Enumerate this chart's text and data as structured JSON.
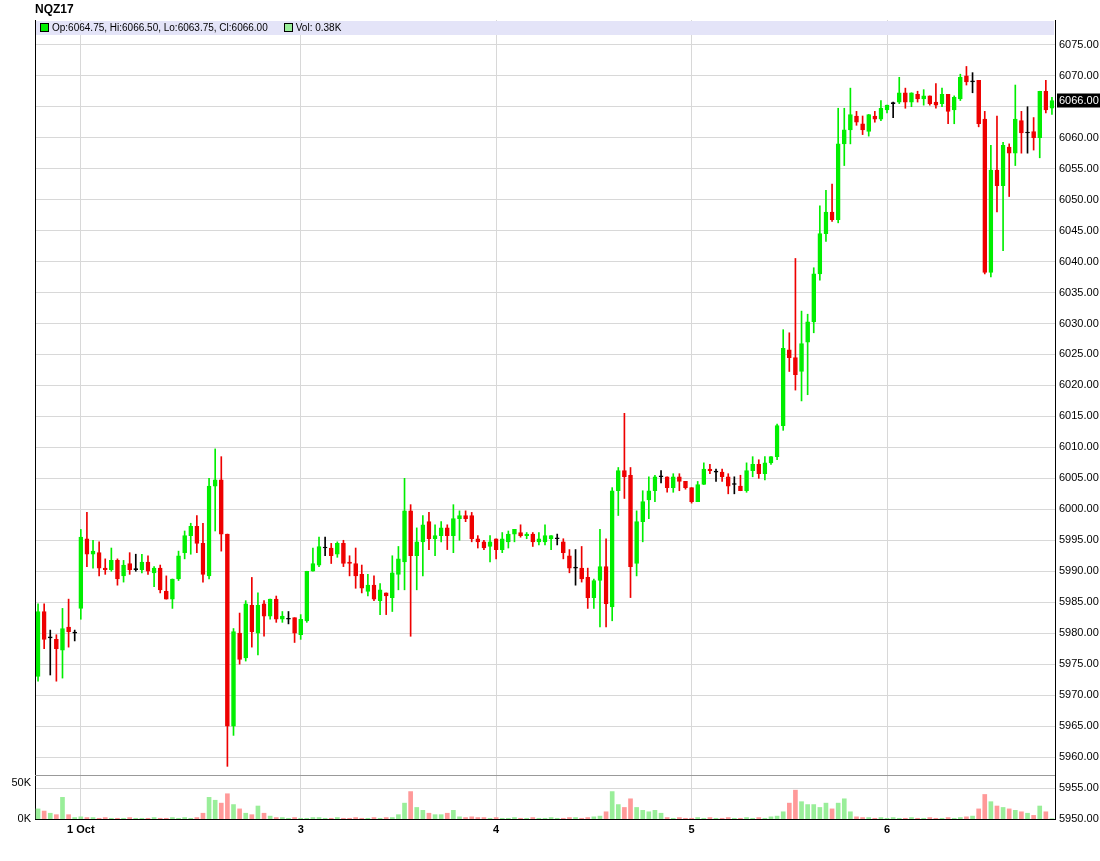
{
  "chart_data": [
    {
      "type": "candlestick",
      "title": "NQZ17",
      "categories": [
        null,
        null,
        null,
        null,
        null,
        null,
        null,
        "1 Oct",
        null,
        null,
        null,
        null,
        null,
        null,
        null,
        null,
        null,
        null,
        null,
        null,
        null,
        null,
        null,
        null,
        null,
        null,
        null,
        null,
        null,
        null,
        null,
        null,
        null,
        null,
        null,
        null,
        null,
        null,
        null,
        null,
        null,
        null,
        null,
        "3",
        null,
        null,
        null,
        null,
        null,
        null,
        null,
        null,
        null,
        null,
        null,
        null,
        null,
        null,
        null,
        null,
        null,
        null,
        null,
        null,
        null,
        null,
        null,
        null,
        null,
        null,
        null,
        null,
        null,
        null,
        null,
        "4",
        null,
        null,
        null,
        null,
        null,
        null,
        null,
        null,
        null,
        null,
        null,
        null,
        null,
        null,
        null,
        null,
        null,
        null,
        null,
        null,
        null,
        null,
        null,
        null,
        null,
        null,
        null,
        null,
        null,
        null,
        null,
        "5",
        null,
        null,
        null,
        null,
        null,
        null,
        null,
        null,
        null,
        null,
        null,
        null,
        null,
        null,
        null,
        null,
        null,
        null,
        null,
        null,
        null,
        null,
        null,
        null,
        null,
        null,
        null,
        null,
        null,
        null,
        null,
        "6",
        null,
        null,
        null,
        null,
        null,
        null,
        null,
        null,
        null,
        null,
        null,
        null,
        null,
        null,
        null,
        null,
        null,
        null,
        null,
        null,
        null,
        null,
        null,
        null,
        null,
        null,
        null
      ],
      "ohlc": [
        [
          5973,
          5984.75,
          5972.25,
          5983.5
        ],
        [
          5983.5,
          5984.75,
          5977.5,
          5979
        ],
        [
          5979.25,
          5980.5,
          5973.25,
          5979.25
        ],
        [
          5979,
          5979.75,
          5972.25,
          5977.5
        ],
        [
          5977.25,
          5984,
          5972.75,
          5980.75
        ],
        [
          5981,
          5985.5,
          5977.75,
          5980.25
        ],
        [
          5980,
          5980.5,
          5978.75,
          5980
        ],
        [
          5984,
          5996.75,
          5982.25,
          5995.5
        ],
        [
          5995.25,
          5999.5,
          5990.75,
          5992.75
        ],
        [
          5992.75,
          5995,
          5990.5,
          5993.25
        ],
        [
          5993,
          5994.75,
          5989.25,
          5990.5
        ],
        [
          5990.5,
          5992,
          5989.5,
          5990.25
        ],
        [
          5990.25,
          5993.75,
          5990,
          5991.75
        ],
        [
          5991.75,
          5992,
          5987.75,
          5988.75
        ],
        [
          5989.25,
          5991.75,
          5988.25,
          5991
        ],
        [
          5991.25,
          5993,
          5989.5,
          5990.25
        ],
        [
          5990.25,
          5992.75,
          5990,
          5990.25
        ],
        [
          5990.25,
          5992.75,
          5989.75,
          5991.5
        ],
        [
          5991.5,
          5992.5,
          5989.5,
          5990
        ],
        [
          5989.75,
          5990.75,
          5987.5,
          5990.5
        ],
        [
          5990.5,
          5991,
          5986.5,
          5987
        ],
        [
          5986.75,
          5989.25,
          5985.5,
          5985.5
        ],
        [
          5985.5,
          5988.75,
          5984,
          5988.75
        ],
        [
          5988.75,
          5993.25,
          5988.5,
          5992.5
        ],
        [
          5993,
          5996.5,
          5992,
          5995.75
        ],
        [
          5995.75,
          5997.75,
          5992.75,
          5997.25
        ],
        [
          5997.25,
          5999,
          5993,
          5994.5
        ],
        [
          5994.5,
          5997.75,
          5988.25,
          5989.5
        ],
        [
          5989.25,
          6005,
          5988.75,
          6003.75
        ],
        [
          6003.75,
          6009.75,
          5996.5,
          6004.75
        ],
        [
          6004.75,
          6008.5,
          5993.25,
          5996
        ],
        [
          5996,
          5996,
          5958.5,
          5965
        ],
        [
          5965,
          5980.75,
          5963.5,
          5980.25
        ],
        [
          5980,
          5983.25,
          5975,
          5975.75
        ],
        [
          5976,
          5985.25,
          5975.5,
          5984.75
        ],
        [
          5984.5,
          5989,
          5977.75,
          5980.25
        ],
        [
          5980,
          5986.5,
          5976.5,
          5984.5
        ],
        [
          5984.75,
          5985.25,
          5979.5,
          5982.75
        ],
        [
          5982.75,
          5985.5,
          5982.25,
          5985.5
        ],
        [
          5985.5,
          5986,
          5981.75,
          5982.25
        ],
        [
          5982.25,
          5983.5,
          5981.75,
          5982.75
        ],
        [
          5982.25,
          5983.5,
          5981.5,
          5982.25
        ],
        [
          5982.5,
          5982.5,
          5978.5,
          5980
        ],
        [
          5979.75,
          5983,
          5979,
          5982.25
        ],
        [
          5982,
          5990,
          5981.75,
          5990
        ],
        [
          5990,
          5993.75,
          5990,
          5991.25
        ],
        [
          5991,
          5995.5,
          5990.75,
          5994
        ],
        [
          5993.75,
          5995.5,
          5992.5,
          5993.75
        ],
        [
          5993.75,
          5994.5,
          5991.25,
          5992.5
        ],
        [
          5992.75,
          5994.75,
          5992.25,
          5994.5
        ],
        [
          5994.5,
          5995,
          5990.75,
          5991.25
        ],
        [
          5991.5,
          5992.5,
          5989.25,
          5991.25
        ],
        [
          5991.25,
          5993.75,
          5987.25,
          5989.25
        ],
        [
          5989.5,
          5991,
          5986.5,
          5987.25
        ],
        [
          5986.75,
          5989.5,
          5986,
          5987.75
        ],
        [
          5987.75,
          5989.25,
          5985.25,
          5985.5
        ],
        [
          5985.25,
          5988,
          5983,
          5987
        ],
        [
          5986.5,
          5986.5,
          5983,
          5986
        ],
        [
          5985.75,
          5992.5,
          5983.5,
          5989.75
        ],
        [
          5989.5,
          5994,
          5987,
          5992
        ],
        [
          5991.5,
          6005,
          5987,
          5999.75
        ],
        [
          5999.75,
          6000.75,
          5979.5,
          5992.5
        ],
        [
          5992.5,
          5997,
          5987,
          5994.75
        ],
        [
          5994.75,
          5999,
          5989.25,
          5997.5
        ],
        [
          5998,
          5999.5,
          5993.5,
          5995.25
        ],
        [
          5995.25,
          5997.5,
          5992.5,
          5995.75
        ],
        [
          5995.75,
          5998,
          5994.75,
          5997
        ],
        [
          5997,
          5997.5,
          5993.5,
          5995.75
        ],
        [
          5995.75,
          6000.75,
          5993,
          5998.5
        ],
        [
          5998.5,
          5999.75,
          5995,
          5999
        ],
        [
          5999,
          5999.75,
          5998,
          5998.5
        ],
        [
          5999,
          5999.5,
          5994.75,
          5995.25
        ],
        [
          5995.25,
          5995.75,
          5993.75,
          5994.75
        ],
        [
          5994.75,
          5995,
          5993.5,
          5993.75
        ],
        [
          5994,
          5995.75,
          5991.5,
          5994.75
        ],
        [
          5995.25,
          5995.25,
          5992,
          5993.5
        ],
        [
          5993.5,
          5996.25,
          5993,
          5995.25
        ],
        [
          5994.75,
          5996.5,
          5993.75,
          5996
        ],
        [
          5996,
          5996.75,
          5994.75,
          5996.75
        ],
        [
          5996.25,
          5997.5,
          5995.5,
          5995.75
        ],
        [
          5995.75,
          5996.25,
          5995.25,
          5996
        ],
        [
          5996,
          5996.25,
          5994,
          5994.75
        ],
        [
          5994.75,
          5996.25,
          5994.25,
          5995.25
        ],
        [
          5994.75,
          5997.5,
          5994.25,
          5995.75
        ],
        [
          5995.25,
          5995.75,
          5993.5,
          5995.75
        ],
        [
          5995.25,
          5996,
          5994.25,
          5995.25
        ],
        [
          5994.75,
          5995.25,
          5992,
          5993
        ],
        [
          5992.5,
          5993.5,
          5989.75,
          5990.5
        ],
        [
          5990.5,
          5993.5,
          5987.75,
          5990.5
        ],
        [
          5990.5,
          5994,
          5988.25,
          5988.75
        ],
        [
          5989,
          5990.5,
          5984,
          5985.75
        ],
        [
          5985.75,
          5988.75,
          5984,
          5988.5
        ],
        [
          5988.5,
          5996.75,
          5981,
          5990.75
        ],
        [
          5990.75,
          5995.25,
          5981,
          5984.75
        ],
        [
          5984.25,
          6003.5,
          5982,
          6003
        ],
        [
          6003,
          6006.75,
          5999,
          6006.25
        ],
        [
          6006.25,
          6015.5,
          6001.75,
          6005.25
        ],
        [
          6005.5,
          6006.75,
          5985.75,
          5990.75
        ],
        [
          5991.25,
          5999.75,
          5989.25,
          5998
        ],
        [
          5998,
          6003,
          5994.75,
          6001.25
        ],
        [
          6001.5,
          6005.25,
          5998.5,
          6003
        ],
        [
          6003,
          6005.5,
          6001.25,
          6005.25
        ],
        [
          6005.25,
          6006.25,
          6004.25,
          6005.25
        ],
        [
          6005.25,
          6005.25,
          6002.75,
          6003.5
        ],
        [
          6003.5,
          6005.75,
          6002.75,
          6005.25
        ],
        [
          6005.25,
          6005.75,
          6003,
          6004.5
        ],
        [
          6004.5,
          6004.5,
          6003.25,
          6003.5
        ],
        [
          6003.5,
          6003.5,
          6001,
          6001.25
        ],
        [
          6001.25,
          6004.5,
          6001.25,
          6004
        ],
        [
          6004,
          6007.5,
          6004,
          6006.5
        ],
        [
          6006.5,
          6007.25,
          6005.75,
          6006.25
        ],
        [
          6006,
          6006.5,
          6004.5,
          6006
        ],
        [
          6006,
          6006.5,
          6004.5,
          6005.25
        ],
        [
          6005.25,
          6005.75,
          6002.5,
          6003.75
        ],
        [
          6004,
          6005.25,
          6002.5,
          6004
        ],
        [
          6003.75,
          6005.5,
          6003,
          6003
        ],
        [
          6003,
          6007.5,
          6002.75,
          6006.25
        ],
        [
          6006.25,
          6008.5,
          6005.25,
          6007.25
        ],
        [
          6007.25,
          6008,
          6005,
          6005.75
        ],
        [
          6005.75,
          6008.5,
          6004.75,
          6007.5
        ],
        [
          6007.5,
          6008.5,
          6007.25,
          6008.5
        ],
        [
          6008.5,
          6013.75,
          6008,
          6013.5
        ],
        [
          6013.5,
          6029,
          6012.75,
          6026
        ],
        [
          6025.75,
          6028.5,
          6022.25,
          6024.5
        ],
        [
          6024.5,
          6040.5,
          6019.25,
          6021.75
        ],
        [
          6022.25,
          6032,
          6017.5,
          6026.75
        ],
        [
          6027,
          6031.5,
          6018.5,
          6030.25
        ],
        [
          6030.25,
          6039,
          6028.5,
          6038
        ],
        [
          6038,
          6049,
          6037,
          6044.5
        ],
        [
          6044.5,
          6051.5,
          6043.25,
          6048
        ],
        [
          6048,
          6052.5,
          6046.5,
          6046.75
        ],
        [
          6046.75,
          6064.75,
          6046.25,
          6059
        ],
        [
          6059,
          6064.75,
          6055.5,
          6061.25
        ],
        [
          6061.25,
          6068,
          6059,
          6063.75
        ],
        [
          6063.5,
          6064.25,
          6062,
          6062.5
        ],
        [
          6062.25,
          6063.5,
          6060.5,
          6061.25
        ],
        [
          6061,
          6063.75,
          6060.25,
          6063.75
        ],
        [
          6063.5,
          6064.25,
          6062.5,
          6063
        ],
        [
          6063,
          6066,
          6062.75,
          6064.75
        ],
        [
          6064.5,
          6065.25,
          6064,
          6065.25
        ],
        [
          6065.5,
          6065.75,
          6063.25,
          6065.5
        ],
        [
          6065.75,
          6069.75,
          6065.5,
          6067.25
        ],
        [
          6067.25,
          6068,
          6064.75,
          6065.75
        ],
        [
          6065.75,
          6067.25,
          6065,
          6067.25
        ],
        [
          6067,
          6067.5,
          6065.75,
          6066.25
        ],
        [
          6066.25,
          6067.75,
          6065.25,
          6066.75
        ],
        [
          6066.75,
          6066.75,
          6065.25,
          6065.5
        ],
        [
          6065.75,
          6068.75,
          6064.75,
          6065.25
        ],
        [
          6065.5,
          6068,
          6065,
          6067
        ],
        [
          6067,
          6067,
          6062.25,
          6064.25
        ],
        [
          6064.5,
          6066.75,
          6062.25,
          6066.5
        ],
        [
          6066.25,
          6070.25,
          6066,
          6069.75
        ],
        [
          6070,
          6071.5,
          6068.5,
          6069
        ],
        [
          6069,
          6070.5,
          6067.25,
          6069
        ],
        [
          6069.25,
          6069.25,
          6061.75,
          6062.25
        ],
        [
          6063,
          6064.25,
          6038,
          6038.25
        ],
        [
          6038.25,
          6058.75,
          6037.5,
          6054.75
        ],
        [
          6054.75,
          6063.5,
          6048,
          6052.25
        ],
        [
          6052.25,
          6059.25,
          6041.75,
          6058.75
        ],
        [
          6058.5,
          6059,
          6050.5,
          6057.5
        ],
        [
          6057.5,
          6068.5,
          6055.5,
          6063
        ],
        [
          6062.75,
          6064.25,
          6057.5,
          6060.75
        ],
        [
          6060.75,
          6065,
          6057.5,
          6060.75
        ],
        [
          6061,
          6063.25,
          6058,
          6060
        ],
        [
          6060,
          6067.5,
          6056.75,
          6067.5
        ],
        [
          6067.5,
          6069.25,
          6064,
          6064.5
        ],
        [
          6064.75,
          6066.5,
          6063.75,
          6066
        ]
      ],
      "colors": [
        "#00ee00",
        "#ee0000",
        "#000000",
        "#ee0000",
        "#00ee00",
        "#ee0000",
        "#000000",
        "#00ee00",
        "#ee0000",
        "#00ee00",
        "#ee0000",
        "#ee0000",
        "#00ee00",
        "#ee0000",
        "#00ee00",
        "#ee0000",
        "#000000",
        "#00ee00",
        "#ee0000",
        "#00ee00",
        "#ee0000",
        "#ee0000",
        "#00ee00",
        "#00ee00",
        "#00ee00",
        "#00ee00",
        "#ee0000",
        "#ee0000",
        "#00ee00",
        "#00ee00",
        "#ee0000",
        "#ee0000",
        "#00ee00",
        "#ee0000",
        "#00ee00",
        "#ee0000",
        "#00ee00",
        "#ee0000",
        "#00ee00",
        "#ee0000",
        "#00ee00",
        "#000000",
        "#ee0000",
        "#00ee00",
        "#00ee00",
        "#00ee00",
        "#00ee00",
        "#000000",
        "#ee0000",
        "#00ee00",
        "#ee0000",
        "#ee0000",
        "#ee0000",
        "#ee0000",
        "#00ee00",
        "#ee0000",
        "#00ee00",
        "#ee0000",
        "#00ee00",
        "#00ee00",
        "#00ee00",
        "#ee0000",
        "#00ee00",
        "#00ee00",
        "#ee0000",
        "#00ee00",
        "#00ee00",
        "#ee0000",
        "#00ee00",
        "#00ee00",
        "#ee0000",
        "#ee0000",
        "#ee0000",
        "#ee0000",
        "#00ee00",
        "#ee0000",
        "#00ee00",
        "#00ee00",
        "#00ee00",
        "#ee0000",
        "#00ee00",
        "#ee0000",
        "#00ee00",
        "#00ee00",
        "#00ee00",
        "#000000",
        "#ee0000",
        "#ee0000",
        "#000000",
        "#ee0000",
        "#ee0000",
        "#00ee00",
        "#00ee00",
        "#ee0000",
        "#00ee00",
        "#00ee00",
        "#ee0000",
        "#ee0000",
        "#00ee00",
        "#00ee00",
        "#00ee00",
        "#00ee00",
        "#000000",
        "#ee0000",
        "#00ee00",
        "#ee0000",
        "#ee0000",
        "#ee0000",
        "#00ee00",
        "#00ee00",
        "#ee0000",
        "#000000",
        "#ee0000",
        "#ee0000",
        "#000000",
        "#ee0000",
        "#00ee00",
        "#00ee00",
        "#ee0000",
        "#00ee00",
        "#00ee00",
        "#00ee00",
        "#00ee00",
        "#ee0000",
        "#ee0000",
        "#00ee00",
        "#00ee00",
        "#00ee00",
        "#00ee00",
        "#00ee00",
        "#ee0000",
        "#00ee00",
        "#00ee00",
        "#00ee00",
        "#ee0000",
        "#ee0000",
        "#00ee00",
        "#ee0000",
        "#00ee00",
        "#00ee00",
        "#000000",
        "#00ee00",
        "#ee0000",
        "#00ee00",
        "#ee0000",
        "#00ee00",
        "#ee0000",
        "#ee0000",
        "#00ee00",
        "#ee0000",
        "#00ee00",
        "#00ee00",
        "#ee0000",
        "#000000",
        "#ee0000",
        "#ee0000",
        "#00ee00",
        "#ee0000",
        "#00ee00",
        "#ee0000",
        "#00ee00",
        "#ee0000",
        "#000000",
        "#ee0000",
        "#00ee00",
        "#ee0000",
        "#00ee00"
      ],
      "ylim": [
        5950,
        6079
      ],
      "yticks": [
        {
          "value": 5950,
          "label": "5950.00"
        },
        {
          "value": 5955,
          "label": "5955.00"
        },
        {
          "value": 5960,
          "label": "5960.00"
        },
        {
          "value": 5965,
          "label": "5965.00"
        },
        {
          "value": 5970,
          "label": "5970.00"
        },
        {
          "value": 5975,
          "label": "5975.00"
        },
        {
          "value": 5980,
          "label": "5980.00"
        },
        {
          "value": 5985,
          "label": "5985.00"
        },
        {
          "value": 5990,
          "label": "5990.00"
        },
        {
          "value": 5995,
          "label": "5995.00"
        },
        {
          "value": 6000,
          "label": "6000.00"
        },
        {
          "value": 6005,
          "label": "6005.00"
        },
        {
          "value": 6010,
          "label": "6010.00"
        },
        {
          "value": 6015,
          "label": "6015.00"
        },
        {
          "value": 6020,
          "label": "6020.00"
        },
        {
          "value": 6025,
          "label": "6025.00"
        },
        {
          "value": 6030,
          "label": "6030.00"
        },
        {
          "value": 6035,
          "label": "6035.00"
        },
        {
          "value": 6040,
          "label": "6040.00"
        },
        {
          "value": 6045,
          "label": "6045.00"
        },
        {
          "value": 6050,
          "label": "6050.00"
        },
        {
          "value": 6055,
          "label": "6055.00"
        },
        {
          "value": 6060,
          "label": "6060.00"
        },
        {
          "value": 6065,
          "label": null
        },
        {
          "value": 6070,
          "label": "6070.00"
        },
        {
          "value": 6075,
          "label": "6075.00"
        }
      ],
      "annotations": [
        "Op:6064.75, Hi:6066.50, Lo:6063.75, Cl:6066.00",
        "Vol: 0.38K",
        {
          "text": "6066.00",
          "y": 6066
        }
      ],
      "grid": true
    },
    {
      "type": "bar",
      "tick_labels": "y",
      "categories": [
        null,
        null,
        null,
        null,
        null,
        null,
        null,
        null,
        null,
        null,
        null,
        null,
        null,
        null,
        null,
        null,
        null,
        null,
        null,
        null,
        null,
        null,
        null,
        null,
        null,
        null,
        null,
        null,
        null,
        null,
        null,
        null,
        null,
        null,
        null,
        null,
        null,
        null,
        null,
        null,
        null,
        null,
        null,
        null,
        null,
        null,
        null,
        null,
        null,
        null,
        null,
        null,
        null,
        null,
        null,
        null,
        null,
        null,
        null,
        null,
        null,
        null,
        null,
        null,
        null,
        null,
        null,
        null,
        null,
        null,
        null,
        null,
        null,
        null,
        null,
        null,
        null,
        null,
        null,
        null,
        null,
        null,
        null,
        null,
        null,
        null,
        null,
        null,
        null,
        null,
        null,
        null,
        null,
        null,
        null,
        null,
        null,
        null,
        null,
        null,
        null,
        null,
        null,
        null,
        null,
        null,
        null,
        null,
        null,
        null,
        null,
        null,
        null,
        null,
        null,
        null,
        null,
        null,
        null,
        null,
        null,
        null,
        null,
        null,
        null,
        null,
        null,
        null,
        null,
        null,
        null,
        null,
        null,
        null,
        null,
        null,
        null,
        null,
        null,
        null,
        null,
        null,
        null,
        null,
        null,
        null,
        null,
        null,
        null,
        null,
        null,
        null,
        null,
        null,
        null,
        null,
        null,
        null,
        null,
        null,
        null,
        null,
        null,
        null,
        null,
        null,
        null
      ],
      "values": [
        14,
        11,
        8,
        6,
        30,
        6,
        2,
        3,
        2,
        2,
        1,
        2,
        1,
        1,
        1,
        2,
        1,
        1,
        1,
        2,
        1,
        1,
        2,
        1,
        2,
        1,
        2,
        8,
        30,
        26,
        22,
        35,
        20,
        14,
        8,
        6,
        18,
        8,
        4,
        2,
        2,
        1,
        2,
        1,
        1,
        2,
        2,
        1,
        1,
        2,
        1,
        1,
        2,
        1,
        1,
        2,
        1,
        2,
        2,
        6,
        22,
        38,
        16,
        12,
        8,
        6,
        6,
        8,
        12,
        3,
        2,
        3,
        2,
        2,
        1,
        2,
        1,
        1,
        2,
        1,
        1,
        2,
        1,
        1,
        2,
        1,
        1,
        2,
        2,
        1,
        2,
        3,
        4,
        10,
        38,
        20,
        16,
        28,
        16,
        12,
        10,
        12,
        8,
        2,
        1,
        2,
        1,
        1,
        2,
        1,
        2,
        1,
        1,
        2,
        1,
        1,
        2,
        1,
        2,
        1,
        3,
        4,
        10,
        22,
        40,
        24,
        20,
        20,
        16,
        22,
        14,
        22,
        28,
        10,
        3,
        2,
        2,
        1,
        2,
        1,
        2,
        1,
        1,
        2,
        1,
        1,
        2,
        1,
        1,
        2,
        1,
        2,
        3,
        4,
        14,
        34,
        24,
        18,
        16,
        14,
        12,
        10,
        8,
        5,
        18,
        10,
        0.38
      ],
      "colors": [
        "#99ee99",
        "#ff9999",
        "#99ee99",
        "#ff9999",
        "#99ee99",
        "#ff9999",
        "#99ee99",
        "#99ee99",
        "#ff9999",
        "#99ee99",
        "#ff9999",
        "#ff9999",
        "#99ee99",
        "#ff9999",
        "#99ee99",
        "#ff9999",
        "#99ee99",
        "#99ee99",
        "#ff9999",
        "#99ee99",
        "#ff9999",
        "#ff9999",
        "#99ee99",
        "#99ee99",
        "#99ee99",
        "#99ee99",
        "#ff9999",
        "#ff9999",
        "#99ee99",
        "#99ee99",
        "#ff9999",
        "#ff9999",
        "#99ee99",
        "#ff9999",
        "#99ee99",
        "#ff9999",
        "#99ee99",
        "#ff9999",
        "#99ee99",
        "#ff9999",
        "#99ee99",
        "#99ee99",
        "#ff9999",
        "#99ee99",
        "#99ee99",
        "#99ee99",
        "#99ee99",
        "#99ee99",
        "#ff9999",
        "#99ee99",
        "#ff9999",
        "#ff9999",
        "#ff9999",
        "#ff9999",
        "#99ee99",
        "#ff9999",
        "#99ee99",
        "#ff9999",
        "#99ee99",
        "#99ee99",
        "#99ee99",
        "#ff9999",
        "#99ee99",
        "#99ee99",
        "#ff9999",
        "#99ee99",
        "#99ee99",
        "#ff9999",
        "#99ee99",
        "#99ee99",
        "#ff9999",
        "#ff9999",
        "#ff9999",
        "#ff9999",
        "#99ee99",
        "#ff9999",
        "#99ee99",
        "#99ee99",
        "#99ee99",
        "#ff9999",
        "#99ee99",
        "#ff9999",
        "#99ee99",
        "#99ee99",
        "#99ee99",
        "#99ee99",
        "#ff9999",
        "#ff9999",
        "#99ee99",
        "#ff9999",
        "#ff9999",
        "#99ee99",
        "#99ee99",
        "#ff9999",
        "#99ee99",
        "#99ee99",
        "#ff9999",
        "#ff9999",
        "#99ee99",
        "#99ee99",
        "#99ee99",
        "#99ee99",
        "#99ee99",
        "#ff9999",
        "#99ee99",
        "#ff9999",
        "#ff9999",
        "#ff9999",
        "#99ee99",
        "#99ee99",
        "#ff9999",
        "#99ee99",
        "#ff9999",
        "#ff9999",
        "#99ee99",
        "#ff9999",
        "#99ee99",
        "#99ee99",
        "#ff9999",
        "#99ee99",
        "#99ee99",
        "#99ee99",
        "#99ee99",
        "#ff9999",
        "#ff9999",
        "#99ee99",
        "#99ee99",
        "#99ee99",
        "#99ee99",
        "#99ee99",
        "#ff9999",
        "#99ee99",
        "#99ee99",
        "#99ee99",
        "#ff9999",
        "#ff9999",
        "#99ee99",
        "#ff9999",
        "#99ee99",
        "#99ee99",
        "#99ee99",
        "#99ee99",
        "#ff9999",
        "#99ee99",
        "#ff9999",
        "#99ee99",
        "#ff9999",
        "#ff9999",
        "#99ee99",
        "#ff9999",
        "#99ee99",
        "#99ee99",
        "#ff9999",
        "#99ee99",
        "#ff9999",
        "#ff9999",
        "#99ee99",
        "#ff9999",
        "#99ee99",
        "#ff9999",
        "#99ee99",
        "#ff9999",
        "#99ee99",
        "#ff9999",
        "#99ee99",
        "#ff9999",
        "#99ee99"
      ],
      "ylim": [
        0,
        61
      ],
      "yticks": [
        {
          "value": 0,
          "label": "0K"
        },
        {
          "value": 50,
          "label": "50K"
        }
      ]
    }
  ]
}
